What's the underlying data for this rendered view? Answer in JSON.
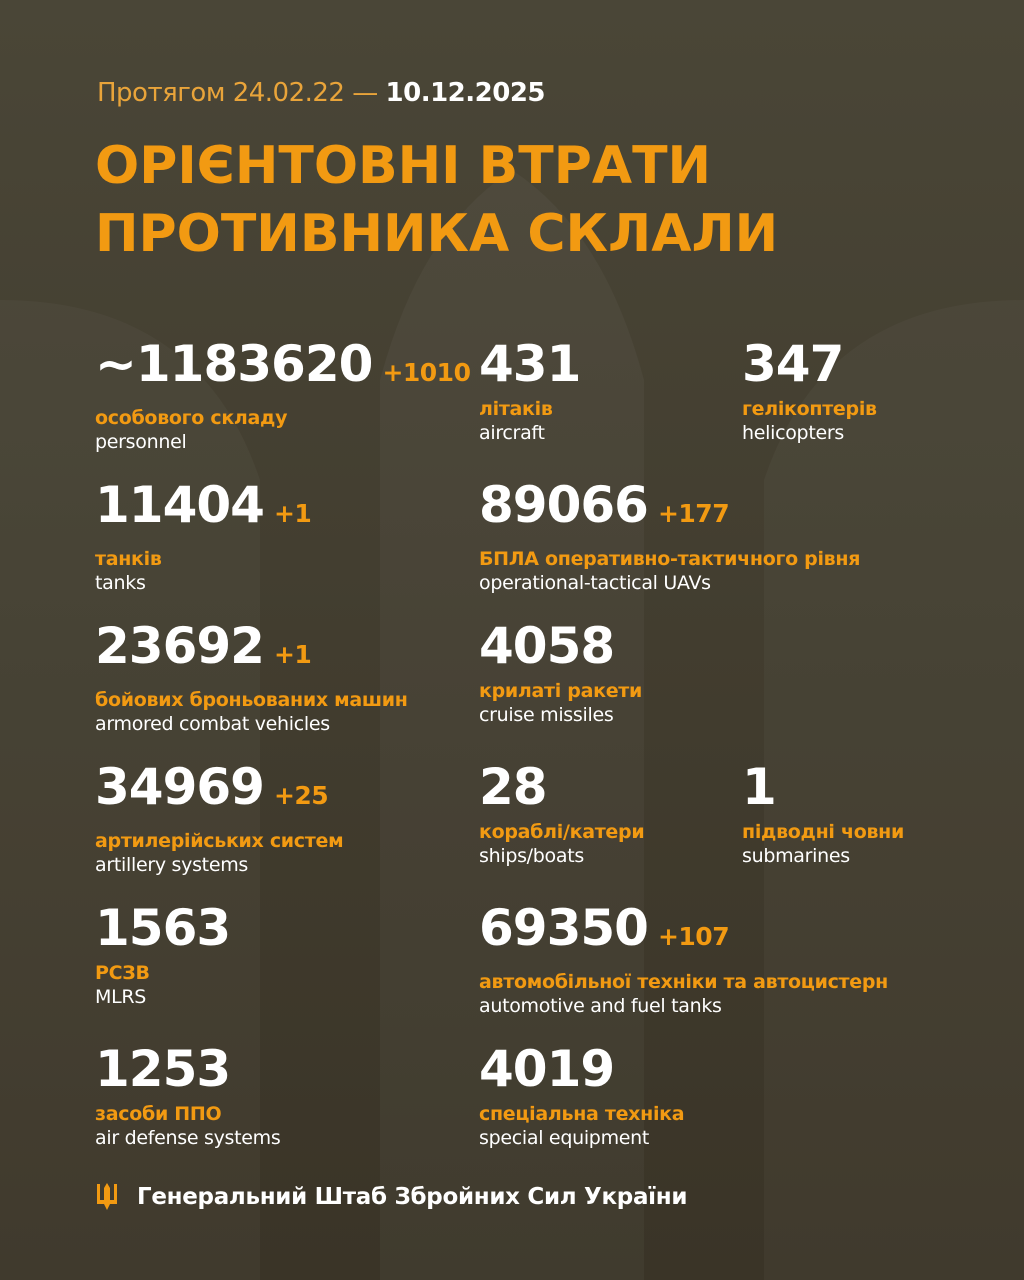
{
  "header": {
    "period_prefix": "Протягом 24.02.22 —",
    "period_end": "10.12.2025",
    "title_line1": "ОРІЄНТОВНІ ВТРАТИ",
    "title_line2": "ПРОТИВНИКА СКЛАЛИ"
  },
  "stats": [
    {
      "value": "~1183620",
      "delta": "+1010",
      "ua": "особового складу",
      "en": "personnel"
    },
    {
      "value": "431",
      "delta": "",
      "ua": "літаків",
      "en": "aircraft"
    },
    {
      "value": "347",
      "delta": "",
      "ua": "гелікоптерів",
      "en": "helicopters"
    },
    {
      "value": "11404",
      "delta": "+1",
      "ua": "танків",
      "en": "tanks"
    },
    {
      "value": "89066",
      "delta": "+177",
      "ua": "БПЛА оперативно-тактичного рівня",
      "en": "operational-tactical UAVs"
    },
    {
      "value": "23692",
      "delta": "+1",
      "ua": "бойових броньованих машин",
      "en": "armored combat vehicles"
    },
    {
      "value": "4058",
      "delta": "",
      "ua": "крилаті ракети",
      "en": "cruise missiles"
    },
    {
      "value": "34969",
      "delta": "+25",
      "ua": "артилерійських систем",
      "en": "artillery systems"
    },
    {
      "value": "28",
      "delta": "",
      "ua": "кораблі/катери",
      "en": "ships/boats"
    },
    {
      "value": "1",
      "delta": "",
      "ua": "підводні човни",
      "en": "submarines"
    },
    {
      "value": "1563",
      "delta": "",
      "ua": "РСЗВ",
      "en": "MLRS"
    },
    {
      "value": "69350",
      "delta": "+107",
      "ua": "автомобільної техніки та автоцистерн",
      "en": "automotive and fuel tanks"
    },
    {
      "value": "1253",
      "delta": "",
      "ua": "засоби ППО",
      "en": "air defense systems"
    },
    {
      "value": "4019",
      "delta": "",
      "ua": "спеціальна техніка",
      "en": "special equipment"
    }
  ],
  "footer": {
    "org": "Генеральний Штаб Збройних Сил України",
    "emblem": "trident-icon"
  },
  "colors": {
    "accent": "#f29a12",
    "background": "#443f31",
    "text": "#ffffff"
  }
}
